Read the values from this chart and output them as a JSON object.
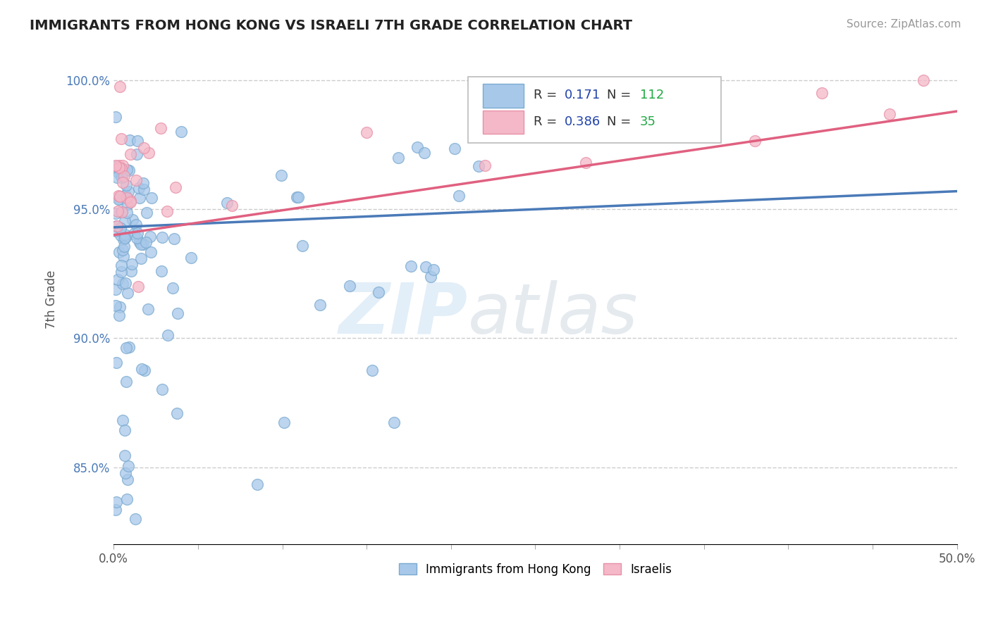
{
  "title": "IMMIGRANTS FROM HONG KONG VS ISRAELI 7TH GRADE CORRELATION CHART",
  "source_text": "Source: ZipAtlas.com",
  "ylabel": "7th Grade",
  "xlim": [
    0.0,
    0.5
  ],
  "ylim": [
    0.82,
    1.01
  ],
  "x_tick_labels": [
    "0.0%",
    "50.0%"
  ],
  "y_ticks": [
    0.85,
    0.9,
    0.95,
    1.0
  ],
  "y_tick_labels": [
    "85.0%",
    "90.0%",
    "95.0%",
    "100.0%"
  ],
  "hk_color": "#a8c8ea",
  "il_color": "#f4b8c8",
  "hk_edge_color": "#7aaad0",
  "il_edge_color": "#e890a8",
  "hk_line_color": "#4a7ab8",
  "il_line_color": "#e06080",
  "hk_R": 0.171,
  "hk_N": 112,
  "il_R": 0.386,
  "il_N": 35,
  "legend_label_hk": "Immigrants from Hong Kong",
  "legend_label_il": "Israelis",
  "legend_box_color": "#cccccc",
  "text_color_R": "#2244aa",
  "text_color_N": "#22aa44"
}
